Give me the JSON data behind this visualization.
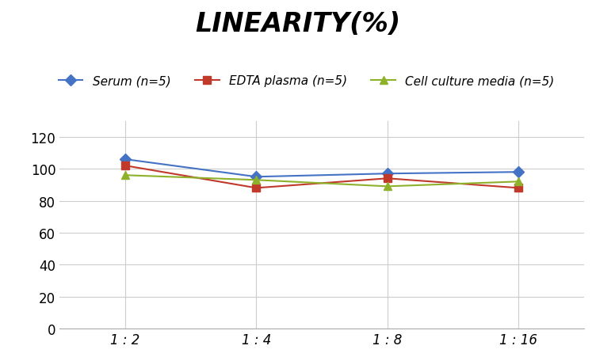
{
  "title": "LINEARITY(%)",
  "x_labels": [
    "1 : 2",
    "1 : 4",
    "1 : 8",
    "1 : 16"
  ],
  "x_positions": [
    0,
    1,
    2,
    3
  ],
  "series": [
    {
      "label": "Serum (n=5)",
      "color": "#4472C4",
      "marker": "D",
      "markersize": 7,
      "values": [
        106,
        95,
        97,
        98
      ]
    },
    {
      "label": "EDTA plasma (n=5)",
      "color": "#C0392B",
      "marker": "s",
      "markersize": 7,
      "values": [
        102,
        88,
        94,
        88
      ]
    },
    {
      "label": "Cell culture media (n=5)",
      "color": "#8DB22A",
      "marker": "^",
      "markersize": 7,
      "values": [
        96,
        93,
        89,
        92
      ]
    }
  ],
  "ylim": [
    0,
    130
  ],
  "yticks": [
    0,
    20,
    40,
    60,
    80,
    100,
    120
  ],
  "background_color": "#ffffff",
  "grid_color": "#cccccc",
  "title_fontsize": 24,
  "legend_fontsize": 11,
  "tick_fontsize": 12
}
